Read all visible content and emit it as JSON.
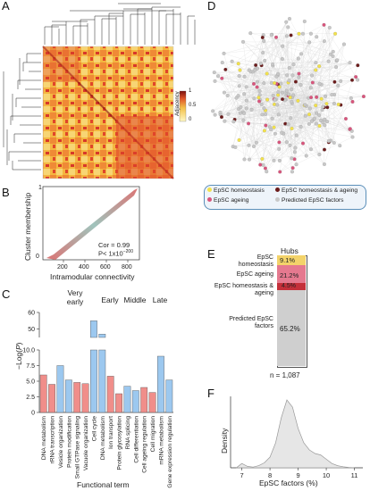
{
  "panels": {
    "A": {
      "label": "A",
      "colorbar": {
        "title": "Adjacency",
        "ticks": [
          "0",
          "0.5",
          "1"
        ]
      }
    },
    "B": {
      "label": "B",
      "ylabel": "Cluster membership",
      "xlabel": "Intramodular connectivity",
      "xticks": [
        "200",
        "400",
        "600",
        "800"
      ],
      "yticks": [
        "0",
        "1"
      ],
      "cor_text": "Cor = 0.99",
      "p_text": "P< 1x10",
      "p_exp": "−200"
    },
    "C": {
      "label": "C",
      "groups": [
        "Very early",
        "Early",
        "Middle",
        "Late"
      ],
      "ylabel": "−Log(",
      "ylabel_p": "P",
      "ylabel_end": ")",
      "xlabel": "Functional term"
    },
    "D": {
      "label": "D",
      "legend": [
        {
          "name": "EpSC homeostasis",
          "color": "#f3e24a"
        },
        {
          "name": "EpSC homeostasis & ageing",
          "color": "#6b1b1b"
        },
        {
          "name": "EpSC ageing",
          "color": "#d9547c"
        },
        {
          "name": "Predicted EpSC factors",
          "color": "#c8c8c8"
        }
      ]
    },
    "E": {
      "label": "E",
      "bar_title": "Hubs",
      "categories": [
        {
          "name": "EpSC homeostasis",
          "percent": "9.1%",
          "color": "#f3d36a"
        },
        {
          "name": "EpSC ageing",
          "percent": "21.2%",
          "color": "#e5798f"
        },
        {
          "name": "EpSC homeostasis & ageing",
          "percent": "4.5%",
          "color": "#c4303a"
        },
        {
          "name": "Predicted EpSC factors",
          "percent": "65.2%",
          "color": "#cfcfcf"
        }
      ],
      "n_text": "n = 1,087"
    },
    "F": {
      "label": "F",
      "ylabel": "Density",
      "xlabel": "EpSC factors (%)",
      "xticks": [
        "7",
        "8",
        "9",
        "10",
        "11"
      ]
    }
  },
  "chart_data": [
    {
      "type": "bar",
      "panel": "C",
      "title": "",
      "xlabel": "Functional term",
      "ylabel": "−Log(P)",
      "categories": [
        "DNA metabolism",
        "rRNA transcription",
        "Vesicle organization",
        "Protein modification",
        "Small GTPase signaling",
        "Vacuole organization",
        "Cell cycle",
        "DNA metabolism",
        "Ion transport",
        "Protein glycosylation",
        "RNA splicing",
        "Cell differentiation",
        "Cell ageing regulation",
        "Cell migration",
        "mRNA metabolism",
        "Gene expression regulation"
      ],
      "values": [
        6.0,
        4.5,
        7.5,
        5.2,
        4.8,
        4.6,
        55.0,
        47.0,
        5.8,
        3.0,
        4.2,
        3.5,
        4.0,
        3.2,
        9.0,
        5.2
      ],
      "bar_colors": [
        "#f08e8a",
        "#f08e8a",
        "#9cc8ef",
        "#9cc8ef",
        "#f08e8a",
        "#f08e8a",
        "#9cc8ef",
        "#9cc8ef",
        "#f08e8a",
        "#f08e8a",
        "#9cc8ef",
        "#9cc8ef",
        "#f08e8a",
        "#f08e8a",
        "#9cc8ef",
        "#9cc8ef"
      ],
      "yticks": [
        "0",
        "2.5",
        "5.0",
        "7.5",
        "10.0",
        "50",
        "60"
      ],
      "axis_break": [
        10.0,
        45.0
      ]
    },
    {
      "type": "area",
      "panel": "F",
      "xlabel": "EpSC factors (%)",
      "ylabel": "Density",
      "x": [
        6.8,
        7.0,
        7.2,
        7.4,
        7.6,
        7.8,
        8.0,
        8.2,
        8.4,
        8.6,
        8.8,
        9.0,
        9.2,
        9.4,
        9.6,
        9.8,
        10.0,
        10.2,
        10.4,
        10.6,
        10.8,
        11.0
      ],
      "y": [
        0.0,
        0.06,
        0.02,
        0.01,
        0.03,
        0.07,
        0.15,
        0.35,
        0.7,
        0.95,
        0.85,
        0.55,
        0.35,
        0.25,
        0.2,
        0.18,
        0.12,
        0.06,
        0.03,
        0.015,
        0.005,
        0.0
      ],
      "xlim": [
        6.6,
        11.3
      ]
    },
    {
      "type": "bar",
      "panel": "E",
      "title": "Hubs",
      "categories": [
        "EpSC homeostasis",
        "EpSC ageing",
        "EpSC homeostasis & ageing",
        "Predicted EpSC factors"
      ],
      "values": [
        9.1,
        21.2,
        4.5,
        65.2
      ]
    },
    {
      "type": "scatter",
      "panel": "B",
      "xlabel": "Intramodular connectivity",
      "ylabel": "Cluster membership",
      "xlim": [
        50,
        950
      ],
      "ylim": [
        0,
        1
      ],
      "correlation": 0.99
    }
  ]
}
